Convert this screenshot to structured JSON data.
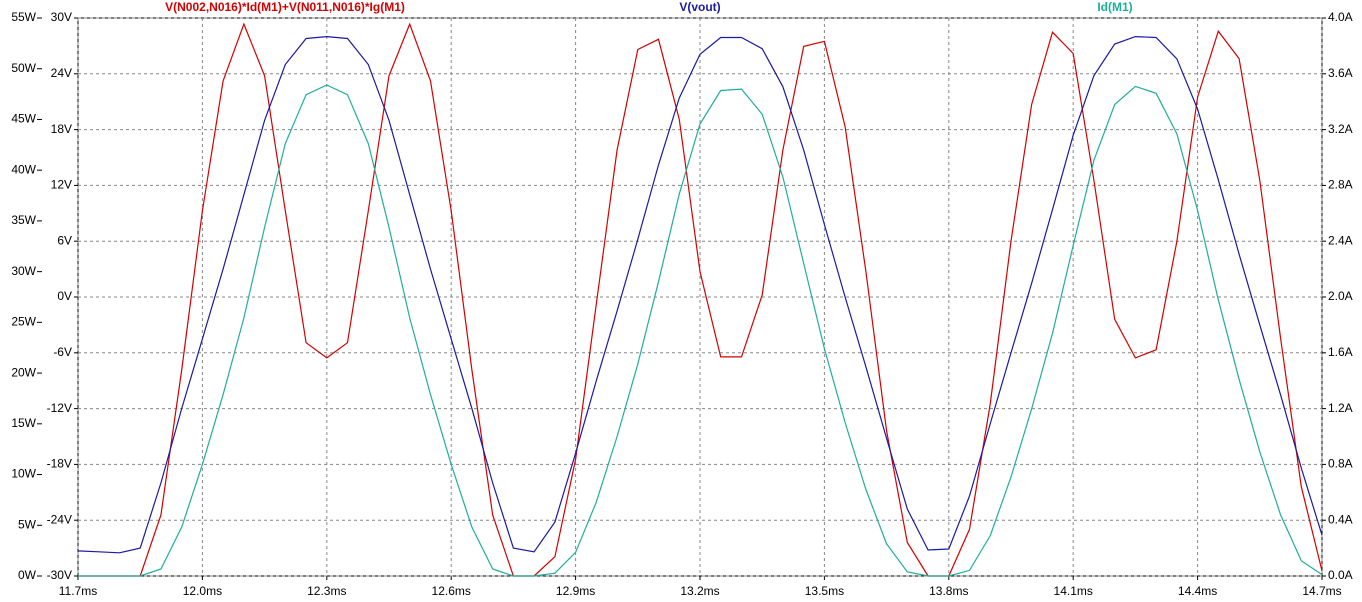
{
  "chart_data": {
    "type": "line",
    "x": [
      11.7,
      11.75,
      11.8,
      11.85,
      11.9,
      11.95,
      12.0,
      12.05,
      12.1,
      12.15,
      12.2,
      12.25,
      12.3,
      12.35,
      12.4,
      12.45,
      12.5,
      12.55,
      12.6,
      12.65,
      12.7,
      12.75,
      12.8,
      12.85,
      12.9,
      12.95,
      13.0,
      13.05,
      13.1,
      13.15,
      13.2,
      13.25,
      13.3,
      13.35,
      13.4,
      13.45,
      13.5,
      13.55,
      13.6,
      13.65,
      13.7,
      13.75,
      13.8,
      13.85,
      13.9,
      13.95,
      14.0,
      14.05,
      14.1,
      14.15,
      14.2,
      14.25,
      14.3,
      14.35,
      14.4,
      14.45,
      14.5,
      14.55,
      14.6,
      14.65,
      14.7
    ],
    "series": [
      {
        "name": "V(N002,N016)*Id(M1)+V(N011,N016)*Ig(M1)",
        "color": "#d40000",
        "axis": "y3",
        "values": [
          0,
          0,
          0,
          0,
          6,
          20.3,
          36,
          48.8,
          54.4,
          49.3,
          36,
          23,
          21.5,
          23,
          36,
          49.3,
          54.4,
          48.8,
          36,
          20.3,
          6,
          0,
          0,
          1.9,
          11.5,
          26.8,
          42,
          51.9,
          52.9,
          45,
          30,
          21.6,
          21.6,
          27.7,
          42,
          52.2,
          52.7,
          44.3,
          30,
          14.3,
          3.3,
          0,
          0,
          4.6,
          17,
          33,
          46.5,
          53.6,
          51.5,
          39,
          25.3,
          21.5,
          22.3,
          33,
          47.2,
          53.7,
          51,
          39,
          23.5,
          8.8,
          0.5
        ]
      },
      {
        "name": "V(vout)",
        "color": "#1a1aa6",
        "values": [
          -27.3,
          -27.4,
          -27.5,
          -27,
          -20,
          -12,
          -4.5,
          3,
          11,
          19,
          25,
          27.8,
          28,
          27.8,
          25,
          19,
          11,
          3,
          -4.5,
          -12,
          -20,
          -27,
          -27.4,
          -24.2,
          -16.8,
          -9,
          -1.5,
          6.2,
          14.2,
          21.4,
          26.1,
          27.9,
          27.9,
          26.7,
          22.6,
          15.8,
          7.8,
          0,
          -7.5,
          -15.2,
          -22.8,
          -27.2,
          -27.1,
          -21.4,
          -13.6,
          -6,
          1.5,
          9.4,
          17.4,
          23.8,
          27.2,
          28,
          27.9,
          25.6,
          20.2,
          12.6,
          4.6,
          -3,
          -10.5,
          -18.4,
          -25.6
        ]
      },
      {
        "name": "Id(M1)",
        "color": "#1fae9c",
        "axis": "y2",
        "values": [
          0,
          0,
          0,
          0,
          0.05,
          0.35,
          0.8,
          1.3,
          1.85,
          2.5,
          3.1,
          3.45,
          3.52,
          3.45,
          3.1,
          2.5,
          1.85,
          1.3,
          0.8,
          0.35,
          0.05,
          0,
          0,
          0.02,
          0.17,
          0.53,
          1.0,
          1.52,
          2.11,
          2.74,
          3.24,
          3.48,
          3.49,
          3.31,
          2.86,
          2.24,
          1.63,
          1.1,
          0.62,
          0.23,
          0.03,
          0,
          0,
          0.04,
          0.29,
          0.71,
          1.2,
          1.74,
          2.37,
          2.98,
          3.38,
          3.51,
          3.46,
          3.17,
          2.62,
          1.98,
          1.41,
          0.89,
          0.44,
          0.11,
          0.01
        ]
      }
    ],
    "xlim": [
      11.7,
      14.7
    ],
    "xticks": [
      {
        "value": 11.7,
        "label": "11.7ms"
      },
      {
        "value": 12.0,
        "label": "12.0ms"
      },
      {
        "value": 12.3,
        "label": "12.3ms"
      },
      {
        "value": 12.6,
        "label": "12.6ms"
      },
      {
        "value": 12.9,
        "label": "12.9ms"
      },
      {
        "value": 13.2,
        "label": "13.2ms"
      },
      {
        "value": 13.5,
        "label": "13.5ms"
      },
      {
        "value": 13.8,
        "label": "13.8ms"
      },
      {
        "value": 14.1,
        "label": "14.1ms"
      },
      {
        "value": 14.4,
        "label": "14.4ms"
      },
      {
        "value": 14.7,
        "label": "14.7ms"
      }
    ],
    "ylim": [
      -30,
      30
    ],
    "yticks": [
      {
        "value": 30,
        "label": "30V"
      },
      {
        "value": 24,
        "label": "24V"
      },
      {
        "value": 18,
        "label": "18V"
      },
      {
        "value": 12,
        "label": "12V"
      },
      {
        "value": 6,
        "label": "6V"
      },
      {
        "value": 0,
        "label": "0V"
      },
      {
        "value": -6,
        "label": "-6V"
      },
      {
        "value": -12,
        "label": "-12V"
      },
      {
        "value": -18,
        "label": "-18V"
      },
      {
        "value": -24,
        "label": "-24V"
      },
      {
        "value": -30,
        "label": "-30V"
      }
    ],
    "y2lim": [
      0,
      4
    ],
    "y2ticks": [
      {
        "value": 4,
        "label": "4.0A"
      },
      {
        "value": 3.6,
        "label": "3.6A"
      },
      {
        "value": 3.2,
        "label": "3.2A"
      },
      {
        "value": 2.8,
        "label": "2.8A"
      },
      {
        "value": 2.4,
        "label": "2.4A"
      },
      {
        "value": 2,
        "label": "2.0A"
      },
      {
        "value": 1.6,
        "label": "1.6A"
      },
      {
        "value": 1.2,
        "label": "1.2A"
      },
      {
        "value": 0.8,
        "label": "0.8A"
      },
      {
        "value": 0.4,
        "label": "0.4A"
      },
      {
        "value": 0,
        "label": "0.0A"
      }
    ],
    "y3lim": [
      0,
      55
    ],
    "y3ticks": [
      {
        "value": 55,
        "label": "55W"
      },
      {
        "value": 50,
        "label": "50W"
      },
      {
        "value": 45,
        "label": "45W"
      },
      {
        "value": 40,
        "label": "40W"
      },
      {
        "value": 35,
        "label": "35W"
      },
      {
        "value": 30,
        "label": "30W"
      },
      {
        "value": 25,
        "label": "25W"
      },
      {
        "value": 20,
        "label": "20W"
      },
      {
        "value": 15,
        "label": "15W"
      },
      {
        "value": 10,
        "label": "10W"
      },
      {
        "value": 5,
        "label": "5W"
      },
      {
        "value": 0,
        "label": "0W"
      }
    ],
    "grid": true
  }
}
